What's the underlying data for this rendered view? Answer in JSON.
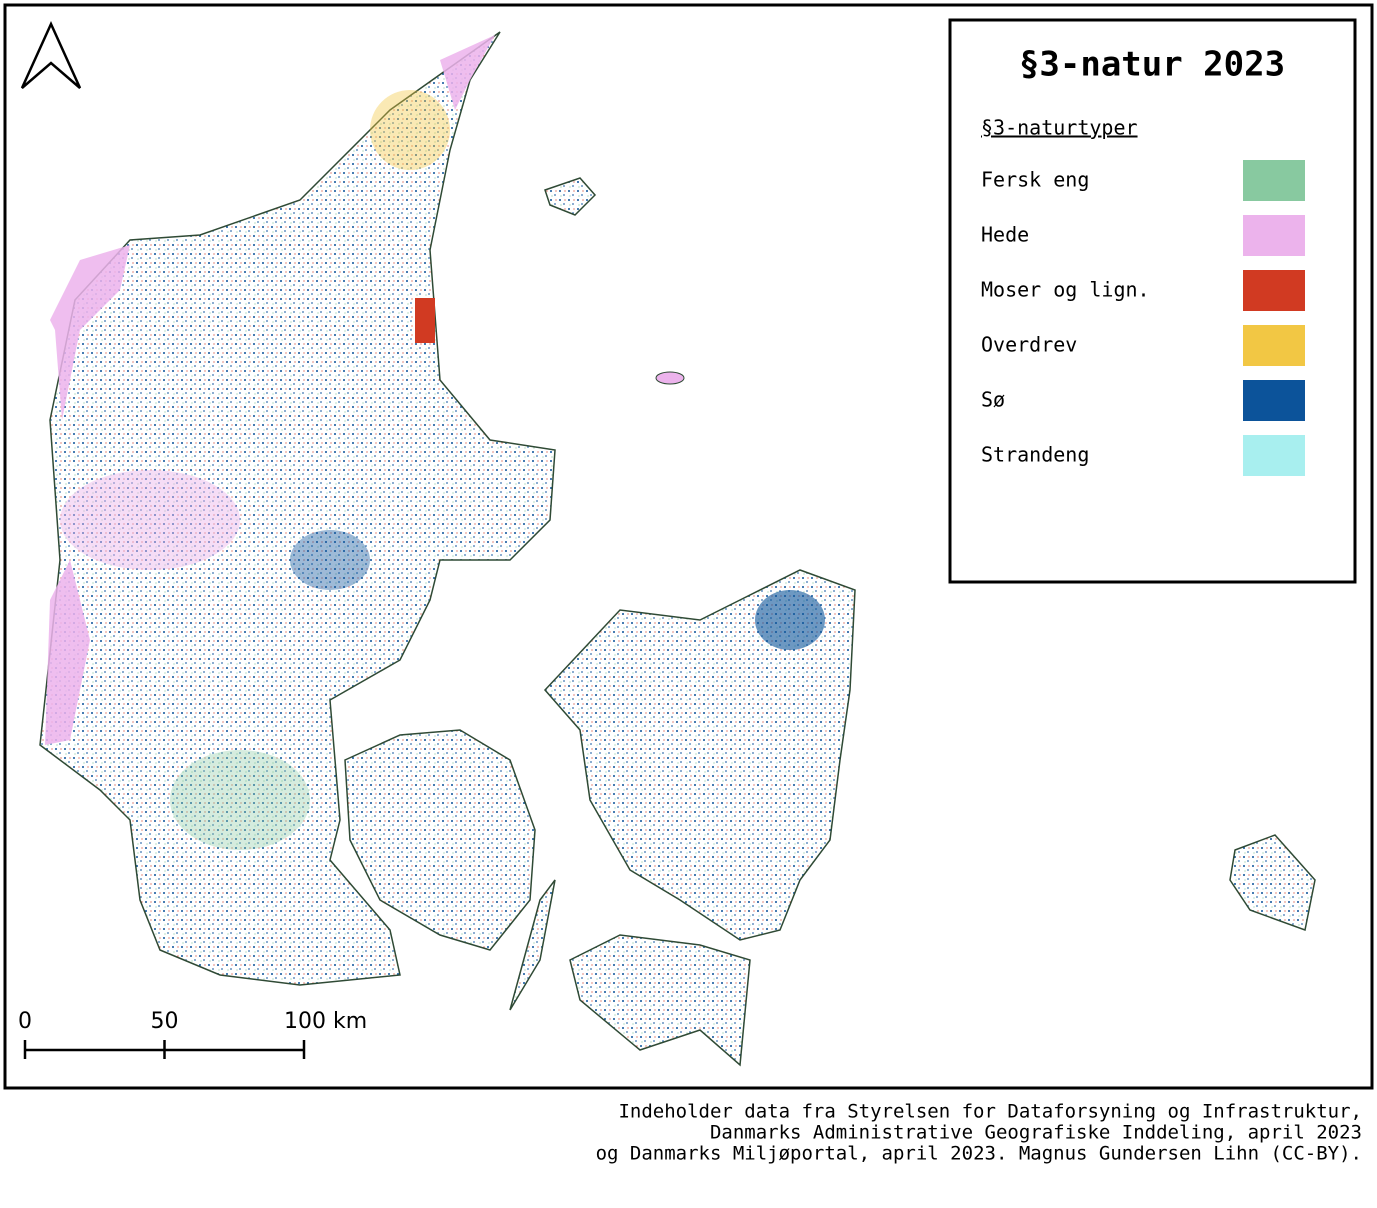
{
  "legend": {
    "title": "§3-natur 2023",
    "subtitle": "§3-naturtyper",
    "items": [
      {
        "label": "Fersk eng",
        "color": "#88c9a0"
      },
      {
        "label": "Hede",
        "color": "#ecb3ec"
      },
      {
        "label": "Moser og lign.",
        "color": "#d13a22"
      },
      {
        "label": "Overdrev",
        "color": "#f2c744"
      },
      {
        "label": "Sø",
        "color": "#0c539a"
      },
      {
        "label": "Strandeng",
        "color": "#a8efef"
      }
    ]
  },
  "scale_bar": {
    "ticks": [
      0,
      50,
      {
        "value": 100,
        "label": "100 km"
      }
    ]
  },
  "credits": [
    "Indeholder data fra Styrelsen for Dataforsyning og Infrastruktur,",
    "Danmarks Administrative Geografiske Inddeling, april 2023",
    "og Danmarks Miljøportal, april 2023. Magnus Gundersen Lihn (CC-BY)."
  ]
}
